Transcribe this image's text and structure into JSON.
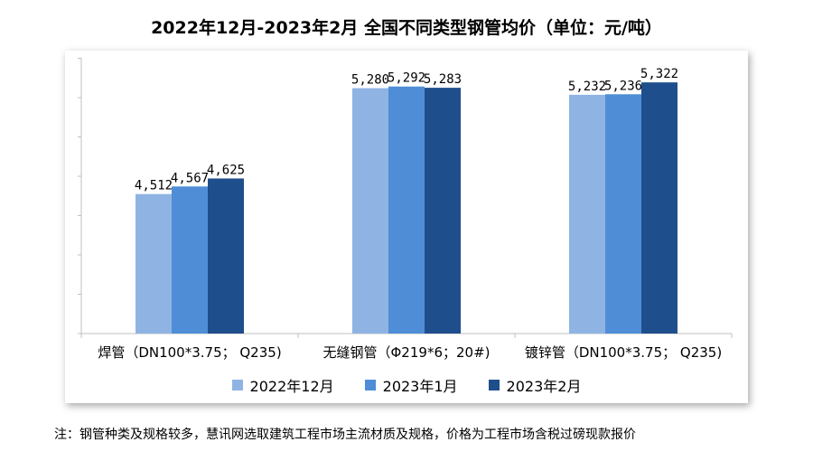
{
  "title": "2022年12月-2023年2月 全国不同类型钢管均价（单位：元/吨）",
  "footnote": "注：钢管种类及规格较多，慧讯网选取建筑工程市场主流材质及规格，价格为工程市场含税过磅现款报价",
  "watermark": "慧讯网",
  "colors": {
    "series": [
      "#8FB4E3",
      "#4F8ED6",
      "#1F4E8C"
    ],
    "axis": "#bfbfbf"
  },
  "chart_data": {
    "type": "bar",
    "categories": [
      "焊管（DN100*3.75； Q235)",
      "无缝钢管（Φ219*6；20#)",
      "镀锌管（DN100*3.75； Q235)"
    ],
    "series": [
      {
        "name": "2022年12月",
        "values": [
          4512,
          5280,
          5232
        ],
        "labels": [
          "4,512",
          "5,280",
          "5,232"
        ]
      },
      {
        "name": "2023年1月",
        "values": [
          4567,
          5292,
          5236
        ],
        "labels": [
          "4,567",
          "5,292",
          "5,236"
        ]
      },
      {
        "name": "2023年2月",
        "values": [
          4625,
          5283,
          5322
        ],
        "labels": [
          "4,625",
          "5,283",
          "5,322"
        ]
      }
    ],
    "ylim": [
      3500,
      5500
    ],
    "y_tick_labels_shown": false,
    "grid": false,
    "legend_position": "bottom"
  }
}
